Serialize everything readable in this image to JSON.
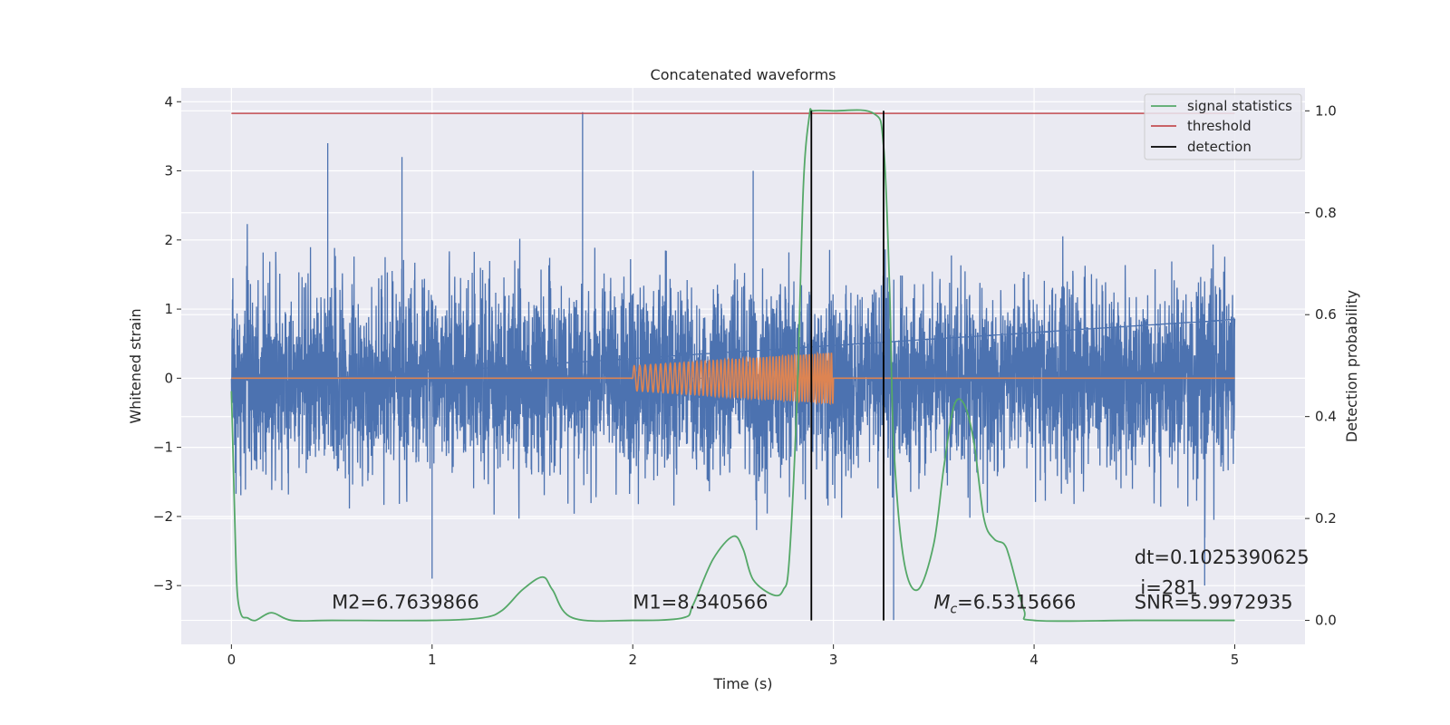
{
  "chart_data": {
    "type": "line",
    "title": "Concatenated waveforms",
    "xlabel": "Time (s)",
    "ylabel": "Whitened strain",
    "y2label": "Detection probability",
    "xlim": [
      -0.25,
      5.35
    ],
    "ylim": [
      -3.85,
      4.2
    ],
    "y2lim": [
      -0.047,
      1.045
    ],
    "x_ticks": [
      0,
      1,
      2,
      3,
      4,
      5
    ],
    "y_ticks": [
      4,
      3,
      2,
      1,
      0,
      -1,
      -2,
      -3
    ],
    "y_tick_labels": [
      "4",
      "3",
      "2",
      "1",
      "0",
      "−1",
      "−2",
      "−3"
    ],
    "y2_ticks": [
      1.0,
      0.8,
      0.6,
      0.4,
      0.2,
      0.0
    ],
    "y2_tick_labels": [
      "1.0",
      "0.8",
      "0.6",
      "0.4",
      "0.2",
      "0.0"
    ],
    "grid": true,
    "legend_position": "top-right",
    "legend": [
      {
        "label": "signal statistics",
        "color": "#55a868"
      },
      {
        "label": "threshold",
        "color": "#c44e52"
      },
      {
        "label": "detection",
        "color": "#000000"
      }
    ],
    "series": [
      {
        "name": "whitened strain",
        "axis": "left",
        "color": "#4c72b0",
        "kind": "noise",
        "x_range": [
          0,
          5
        ],
        "peak_samples": [
          {
            "x": 0.48,
            "y": 3.4
          },
          {
            "x": 0.85,
            "y": 3.2
          },
          {
            "x": 1.75,
            "y": 3.85
          },
          {
            "x": 2.6,
            "y": 3.0
          },
          {
            "x": 1.0,
            "y": -2.9
          },
          {
            "x": 3.3,
            "y": -3.5
          },
          {
            "x": 4.85,
            "y": -3.0
          }
        ]
      },
      {
        "name": "injected waveform",
        "axis": "left",
        "color": "#dd8452",
        "kind": "chirp",
        "x_range": [
          0,
          5
        ],
        "chirp_start": 2.0,
        "chirp_end": 3.0,
        "amplitude_start": 0.18,
        "amplitude_end": 0.37
      },
      {
        "name": "signal statistics",
        "axis": "right",
        "color": "#55a868",
        "x": [
          0,
          0.01,
          0.02,
          0.03,
          0.05,
          0.08,
          0.12,
          0.2,
          0.3,
          0.5,
          1.0,
          1.25,
          1.35,
          1.45,
          1.55,
          1.6,
          1.7,
          2.0,
          2.25,
          2.3,
          2.4,
          2.5,
          2.55,
          2.6,
          2.7,
          2.75,
          2.78,
          2.82,
          2.85,
          2.88,
          2.9,
          3.0,
          3.2,
          3.25,
          3.28,
          3.3,
          3.35,
          3.42,
          3.5,
          3.55,
          3.6,
          3.65,
          3.7,
          3.75,
          3.8,
          3.85,
          3.88,
          3.95,
          4.0,
          4.5,
          5.0
        ],
        "y": [
          0.45,
          0.3,
          0.15,
          0.05,
          0.01,
          0.005,
          0.0,
          0.015,
          0.0,
          0.0,
          0.0,
          0.005,
          0.02,
          0.06,
          0.085,
          0.06,
          0.005,
          0.0,
          0.005,
          0.03,
          0.12,
          0.165,
          0.14,
          0.08,
          0.05,
          0.06,
          0.12,
          0.45,
          0.85,
          0.99,
          1.0,
          1.0,
          0.995,
          0.93,
          0.65,
          0.35,
          0.12,
          0.06,
          0.15,
          0.3,
          0.42,
          0.425,
          0.35,
          0.2,
          0.16,
          0.15,
          0.12,
          0.02,
          0.0,
          0.0,
          0.0
        ]
      },
      {
        "name": "threshold",
        "axis": "right",
        "color": "#c44e52",
        "x": [
          0,
          5
        ],
        "y": [
          0.995,
          0.995
        ]
      }
    ],
    "detections": [
      2.89,
      3.25
    ],
    "annotations": [
      {
        "x": 0.5,
        "y": -3.33,
        "text": "M2=6.7639866"
      },
      {
        "x": 2.0,
        "y": -3.33,
        "text": "M1=8.340566"
      },
      {
        "x": 3.5,
        "y": -3.33,
        "text_pre": "M",
        "text_sub": "c",
        "text_post": "=6.5315666"
      },
      {
        "x": 4.5,
        "y": -3.33,
        "text": "SNR=5.9972935"
      },
      {
        "x": 4.53,
        "y": -3.12,
        "text": "i=281"
      },
      {
        "x": 4.5,
        "y": -2.68,
        "text": "dt=0.1025390625"
      }
    ]
  }
}
